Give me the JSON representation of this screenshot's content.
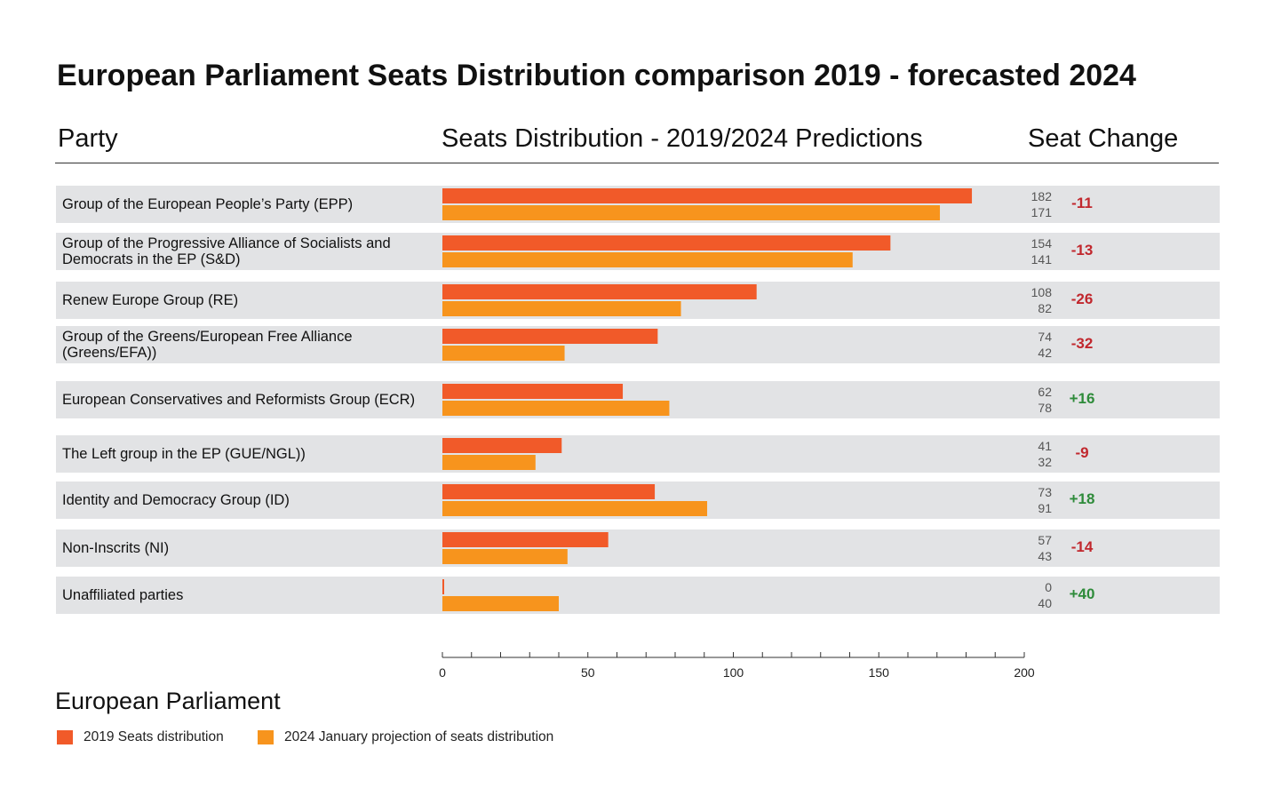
{
  "chart_data": {
    "type": "bar",
    "title": "European Parliament Seats Distribution comparison 2019 - forecasted 2024",
    "column_headers": {
      "party": "Party",
      "distribution": "Seats Distribution - 2019/2024 Predictions",
      "change": "Seat Change"
    },
    "categories": [
      "Group of the European People’s Party (EPP)",
      "Group of the Progressive Alliance of Socialists and Democrats in the EP (S&D)",
      "Renew Europe Group (RE)",
      "Group of the Greens/European Free Alliance (Greens/EFA))",
      "European Conservatives and Reformists Group (ECR)",
      "The Left group in the EP (GUE/NGL))",
      "Identity and Democracy Group (ID)",
      "Non-Inscrits (NI)",
      "Unaffiliated parties"
    ],
    "series": [
      {
        "name": "2019 Seats distribution",
        "color": "#f15a29",
        "values": [
          182,
          154,
          108,
          74,
          62,
          41,
          73,
          57,
          0
        ]
      },
      {
        "name": "2024 January projection of seats distribution",
        "color": "#f7941d",
        "values": [
          171,
          141,
          82,
          42,
          78,
          32,
          91,
          43,
          40
        ]
      }
    ],
    "changes": [
      "-11",
      "-13",
      "-26",
      "-32",
      "+16",
      "-9",
      "+18",
      "-14",
      "+40"
    ],
    "change_colors": {
      "negative": "#c1272d",
      "positive": "#2e8b3a"
    },
    "xlim": [
      0,
      200
    ],
    "x_ticks": [
      0,
      50,
      100,
      150,
      200
    ],
    "legend_position": "bottom-left"
  },
  "footer": {
    "title": "European Parliament"
  }
}
